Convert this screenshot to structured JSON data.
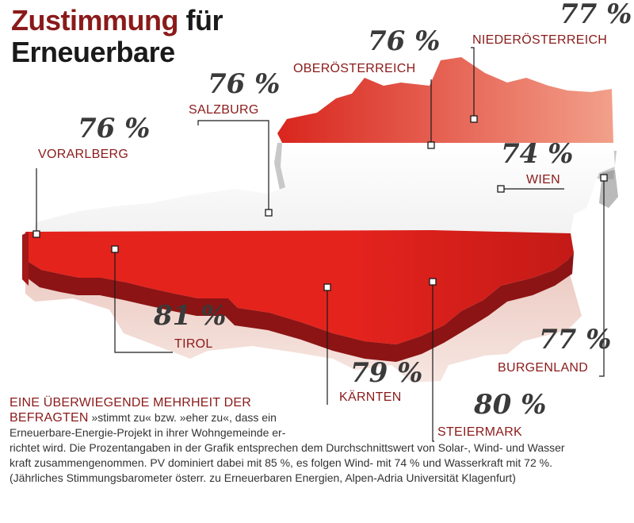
{
  "title": {
    "accent": "Zustimmung",
    "rest": " für",
    "line2": "Erneuerbare"
  },
  "colors": {
    "red": "#e4231d",
    "dark_red": "#8b1a1a",
    "white": "#ffffff",
    "label_red": "#8b1a1a",
    "percent_gray": "#3a3a3a"
  },
  "regions": [
    {
      "id": "niederoesterreich",
      "name": "NIEDERÖSTERREICH",
      "value": "77 %"
    },
    {
      "id": "oberoesterreich",
      "name": "OBERÖSTERREICH",
      "value": "76 %"
    },
    {
      "id": "salzburg",
      "name": "SALZBURG",
      "value": "76 %"
    },
    {
      "id": "vorarlberg",
      "name": "VORARLBERG",
      "value": "76 %"
    },
    {
      "id": "wien",
      "name": "WIEN",
      "value": "74 %"
    },
    {
      "id": "tirol",
      "name": "TIROL",
      "value": "81 %"
    },
    {
      "id": "kaernten",
      "name": "KÄRNTEN",
      "value": "79 %"
    },
    {
      "id": "burgenland",
      "name": "BURGENLAND",
      "value": "77 %"
    },
    {
      "id": "steiermark",
      "name": "STEIERMARK",
      "value": "80 %"
    }
  ],
  "caption": {
    "lead_line1": "EINE ÜBERWIEGENDE MEHRHEIT DER",
    "lead_line2": "BEFRAGTEN",
    "line2_rest": " »stimmt zu« bzw. »eher zu«, dass ein",
    "line3": "Erneuerbare-Energie-Projekt in ihrer Wohngemeinde er-",
    "line4": "richtet wird. Die Prozentangaben in der Grafik entsprechen dem Durchschnittswert von Solar-, Wind- und Wasser",
    "line5": "kraft zusammengenommen. PV dominiert dabei mit 85 %, es folgen Wind- mit 74 % und Wasserkraft mit 72 %.",
    "line6": "(Jährliches Stimmungsbarometer österr. zu Erneuerbaren Energien, Alpen-Adria Universität Klagenfurt)"
  }
}
